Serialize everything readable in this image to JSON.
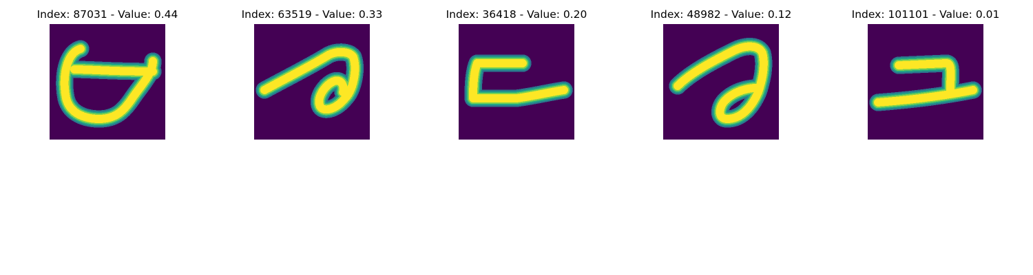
{
  "colors": {
    "background": "#440154",
    "stroke_core": "#fde725",
    "stroke_mid": "#7ad151",
    "stroke_edge": "#22a884",
    "stroke_outer": "#2a788e"
  },
  "panels": [
    {
      "title": "Index: 87031 - Value: 0.44",
      "glyph": "bowl"
    },
    {
      "title": "Index: 63519 - Value: 0.33",
      "glyph": "hook"
    },
    {
      "title": "Index: 36418 - Value: 0.20",
      "glyph": "bracket"
    },
    {
      "title": "Index: 48982 - Value: 0.12",
      "glyph": "loop"
    },
    {
      "title": "Index: 101101 - Value: 0.01",
      "glyph": "base"
    }
  ]
}
